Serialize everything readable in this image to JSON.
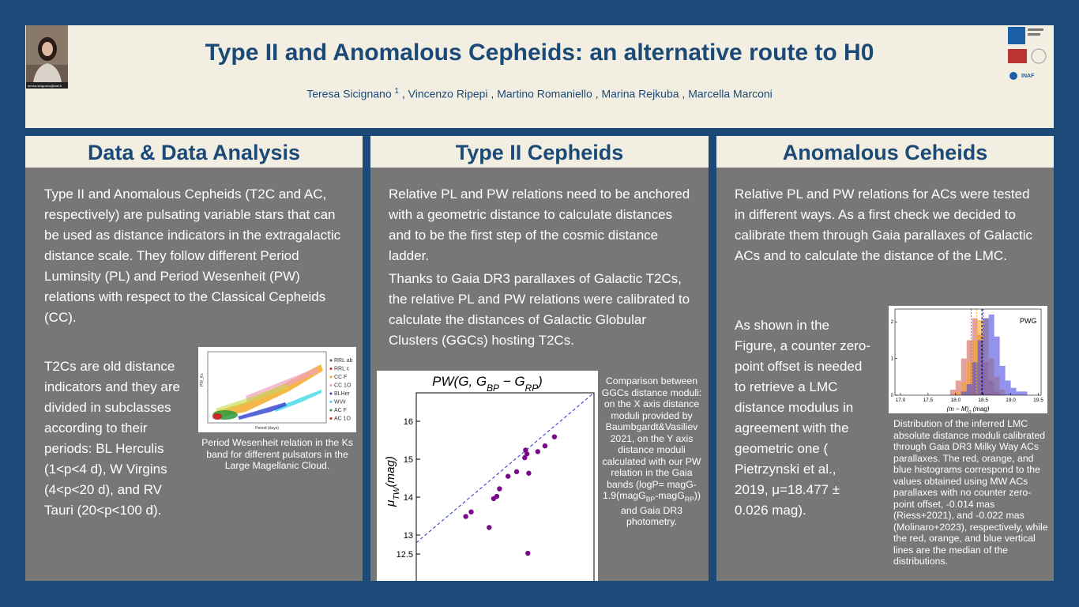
{
  "header": {
    "title": "Type II and Anomalous Cepheids: an alternative route to H0",
    "authors": [
      {
        "text": "Teresa Sicignano "
      },
      {
        "sup": "1"
      },
      {
        "text": " , Vincenzo  Ripepi  , Martino  Romaniello  , Marina  Rejkuba  , Marcella Marconi"
      }
    ],
    "photo_caption": "teresa.sicignano@inaf.it",
    "logo_text": "INAF"
  },
  "panels": [
    {
      "heading": "Data & Data Analysis",
      "paragraphs": [
        "Type II and Anomalous Cepheids (T2C and AC, respectively) are pulsating variable stars that can be used as distance indicators in the extragalactic distance scale. They follow different Period Luminsity (PL) and Period Wesenheit (PW) relations with respect to the Classical Cepheids (CC).",
        "T2Cs are old distance indicators and they are divided in subclasses according to their periods: BL Herculis (1<p<4 d), W Virgins (4<p<20 d), and RV Tauri (20<p<100 d)."
      ],
      "figure": {
        "legend": [
          "RRL ab",
          "RRL c",
          "CC F",
          "CC 1O",
          "BLHer",
          "WVir",
          "AC F",
          "AC 1O"
        ],
        "x_label": "Period (days)",
        "y_label": "PW_Ks"
      },
      "caption": "Period Wesenheit relation in the Ks band for different pulsators in the Large Magellanic Cloud."
    },
    {
      "heading": "Type II Cepheids",
      "paragraphs": [
        "Relative PL and PW relations need to be anchored with a geometric distance to calculate distances and to be the first step of the cosmic distance ladder.",
        "Thanks to Gaia DR3 parallaxes of Galactic T2Cs, the relative PL and PW relations were calibrated to calculate the distances of Galactic Globular Clusters (GGCs) hosting T2Cs."
      ],
      "chart_data": {
        "type": "scatter",
        "title": [
          {
            "text": "PW(G, G"
          },
          {
            "sub": "BP"
          },
          {
            "text": " − G"
          },
          {
            "sub": "RP"
          },
          {
            "text": ")"
          }
        ],
        "y_label": [
          {
            "text": "μ"
          },
          {
            "sub": "TW"
          },
          {
            "text": "(mag)"
          }
        ],
        "x": [
          13.9,
          14.02,
          14.42,
          14.52,
          14.59,
          14.65,
          14.84,
          15.03,
          15.21,
          15.23,
          15.26,
          15.3,
          15.5,
          15.66,
          15.87,
          15.28
        ],
        "series": [
          {
            "color": "#7a0a8a",
            "values": [
              13.49,
              13.61,
              13.2,
              13.96,
              14.02,
              14.22,
              14.55,
              14.67,
              15.04,
              15.24,
              15.14,
              14.63,
              15.2,
              15.35,
              15.59,
              12.52
            ]
          }
        ],
        "xlim": [
          12.8,
          16.75
        ],
        "ylim": [
          12.0,
          16.75
        ],
        "yticks": [
          12.5,
          13,
          14,
          15,
          16
        ]
      },
      "caption": [
        {
          "text": "Comparison between GGCs distance moduli: on the X axis distance moduli provided by Baumbgardt&Vasiliev 2021, on the Y axis distance moduli calculated with our PW relation in the Gaia bands (logP= magG-1.9(magG"
        },
        {
          "sub": "BP"
        },
        {
          "text": "-magG"
        },
        {
          "sub": "RP"
        },
        {
          "text": ")) and Gaia DR3 photometry."
        }
      ]
    },
    {
      "heading": "Anomalous Ceheids",
      "paragraphs": [
        "Relative PL and PW relations for ACs were tested in different ways. As a first check we decided to calibrate them through Gaia parallaxes of Galactic ACs and to calculate the distance of the LMC.",
        "As shown in the Figure, a counter zero-point offset is needed to retrieve a LMC distance modulus in agreement with the geometric one ( Pietrzynski et al., 2019, μ=18.477 ± 0.026 mag)."
      ],
      "chart_data": {
        "type": "histogram",
        "label": "PWG",
        "x_label": [
          {
            "text": "(m − M)"
          },
          {
            "sub": "0"
          },
          {
            "text": " (mag)"
          }
        ],
        "bins": [
          17.9,
          18.0,
          18.1,
          18.2,
          18.3,
          18.4,
          18.5,
          18.6,
          18.7,
          18.8,
          18.9,
          19.0,
          19.1,
          19.2,
          19.3
        ],
        "series": [
          {
            "color": "#d0605a",
            "values": [
              0.15,
              0.4,
              1.0,
              1.5,
              2.1,
              1.65,
              0.9,
              0.4,
              0.1,
              0,
              0,
              0,
              0,
              0
            ]
          },
          {
            "color": "#f5a524",
            "values": [
              0,
              0.1,
              0.35,
              0.9,
              1.5,
              2.05,
              2.1,
              1.0,
              0.5,
              0.15,
              0,
              0,
              0,
              0
            ]
          },
          {
            "color": "#4a4ae0",
            "values": [
              0,
              0,
              0.1,
              0.3,
              0.9,
              1.5,
              2.1,
              2.2,
              1.6,
              0.8,
              0.4,
              0.2,
              0.1,
              0.1
            ]
          }
        ],
        "medians": [
          18.28,
          18.38,
          18.5
        ],
        "reference": 18.477,
        "xlim": [
          16.9,
          19.55
        ],
        "ylim": [
          0,
          2.35
        ],
        "xticks": [
          {
            "value": 17,
            "label": "17.0"
          },
          17.5,
          {
            "value": 18,
            "label": "18.0"
          },
          18.5,
          {
            "value": 19,
            "label": "19.0"
          },
          19.5
        ],
        "yticks": [
          0,
          1,
          2
        ]
      },
      "caption": "Distribution of the inferred LMC absolute distance moduli calibrated through Gaia DR3 Milky Way ACs parallaxes. The red, orange, and blue histograms correspond to the values obtained using MW ACs parallaxes with no counter zero-point offset, -0.014 mas (Riess+2021), and -0.022 mas (Molinaro+2023), respectively, while the red, orange, and blue vertical lines are the median of the distributions."
    }
  ]
}
